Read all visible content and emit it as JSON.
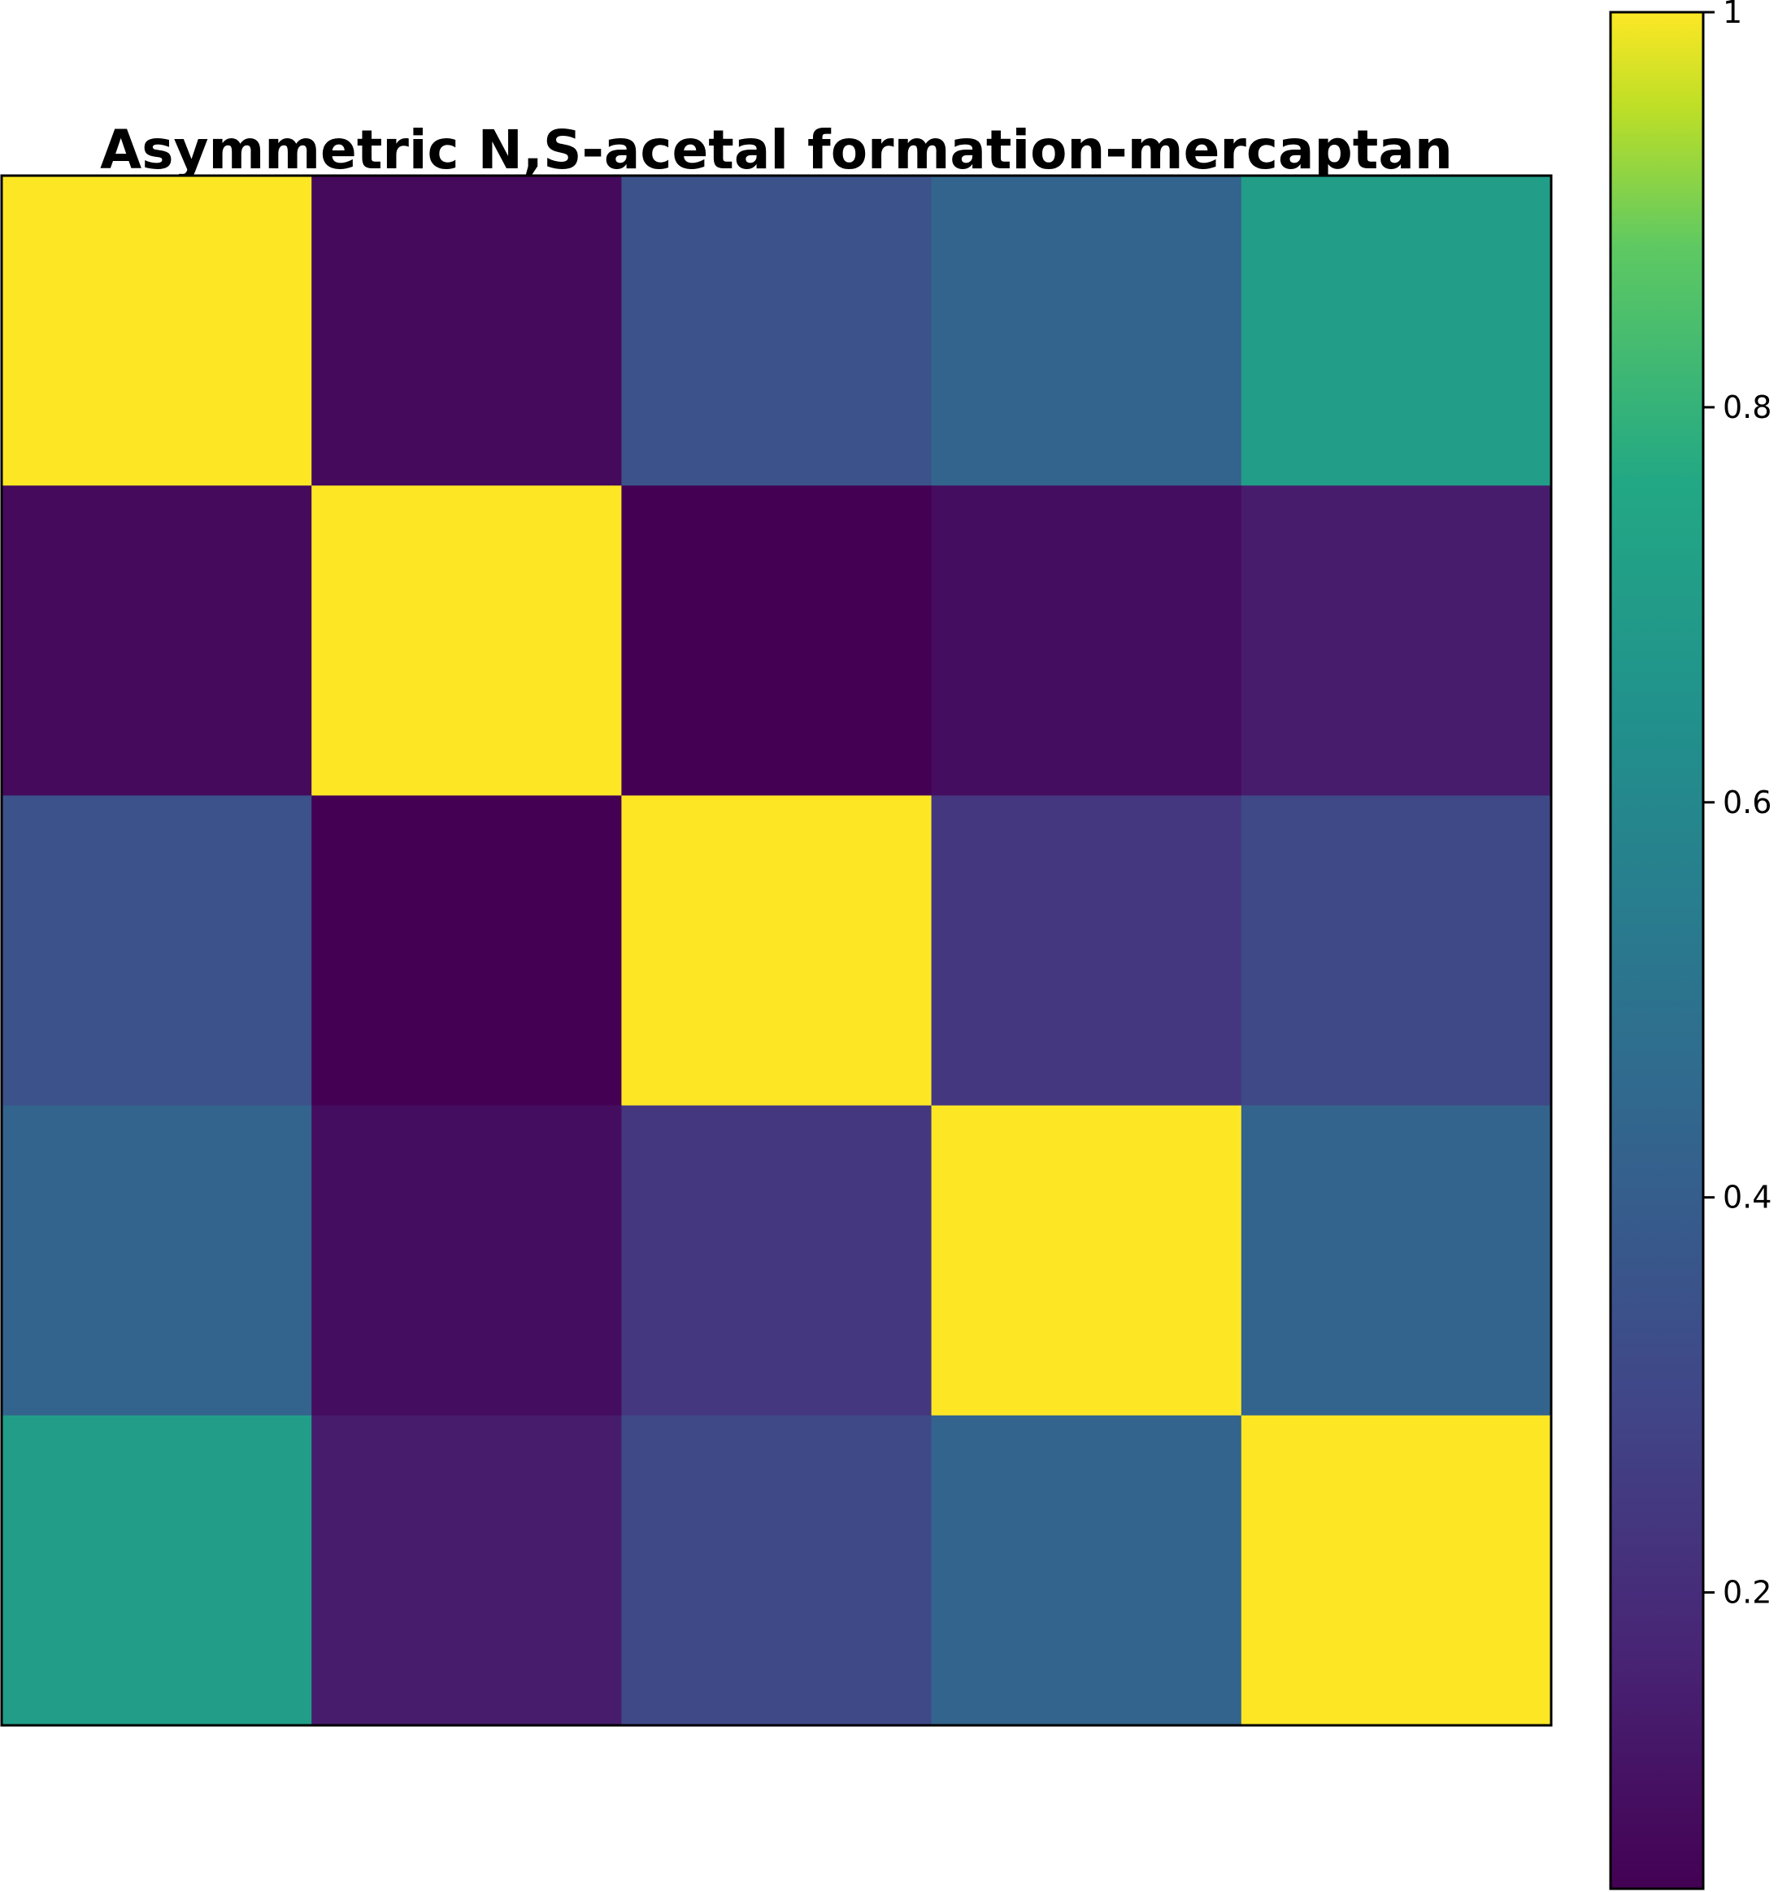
{
  "chart_data": {
    "type": "heatmap",
    "title": "Asymmetric N,S-acetal formation-mercaptan",
    "xlabel": "",
    "ylabel": "",
    "rows": 5,
    "cols": 5,
    "values": [
      [
        1.0,
        0.08,
        0.35,
        0.43,
        0.71
      ],
      [
        0.08,
        1.0,
        0.05,
        0.09,
        0.14
      ],
      [
        0.35,
        0.05,
        1.0,
        0.24,
        0.31
      ],
      [
        0.43,
        0.09,
        0.24,
        1.0,
        0.43
      ],
      [
        0.71,
        0.14,
        0.31,
        0.43,
        1.0
      ]
    ],
    "colormap": "viridis",
    "colorbar": {
      "min": 0.05,
      "max": 1.0,
      "ticks": [
        0.2,
        0.4,
        0.6,
        0.8,
        1
      ],
      "tick_labels": [
        "0.2",
        "0.4",
        "0.6",
        "0.8",
        "1"
      ]
    },
    "grid": false,
    "legend": "colorbar-right"
  }
}
